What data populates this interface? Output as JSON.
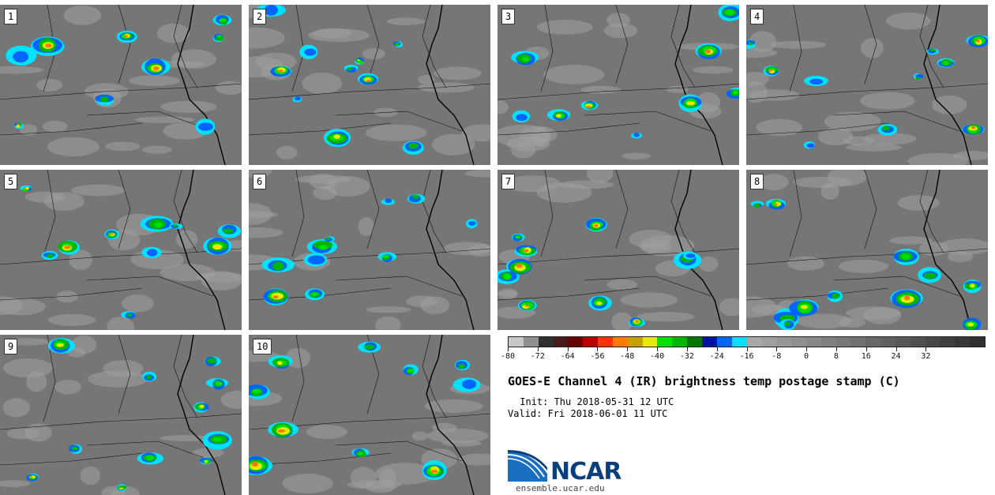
{
  "panels": [
    {
      "label": "1"
    },
    {
      "label": "2"
    },
    {
      "label": "3"
    },
    {
      "label": "4"
    },
    {
      "label": "5"
    },
    {
      "label": "6"
    },
    {
      "label": "7"
    },
    {
      "label": "8"
    },
    {
      "label": "9"
    },
    {
      "label": "10"
    }
  ],
  "colorbar": {
    "colors": [
      "#c8c8c8",
      "#909090",
      "#303030",
      "#4a1b1b",
      "#6b0000",
      "#b40000",
      "#ff3300",
      "#ff7b00",
      "#c8a000",
      "#e8e800",
      "#00e000",
      "#00b400",
      "#007800",
      "#0014a0",
      "#0064ff",
      "#00e1ff",
      "#a8a8a8",
      "#a0a0a0",
      "#989898",
      "#909090",
      "#888888",
      "#808080",
      "#787878",
      "#707070",
      "#686868",
      "#606060",
      "#585858",
      "#505050",
      "#484848",
      "#404040",
      "#383838",
      "#303030"
    ],
    "tick_labels": [
      "-80",
      "-72",
      "-64",
      "-56",
      "-48",
      "-40",
      "-32",
      "-24",
      "-16",
      "-8",
      "0",
      "8",
      "16",
      "24",
      "32"
    ]
  },
  "title": "GOES-E Channel 4 (IR) brightness temp postage stamp (C)",
  "init": " Init: Thu 2018-05-31 12 UTC",
  "valid": "Valid: Fri 2018-06-01 11 UTC",
  "logo_text": "NCAR",
  "site": "ensemble.ucar.edu"
}
